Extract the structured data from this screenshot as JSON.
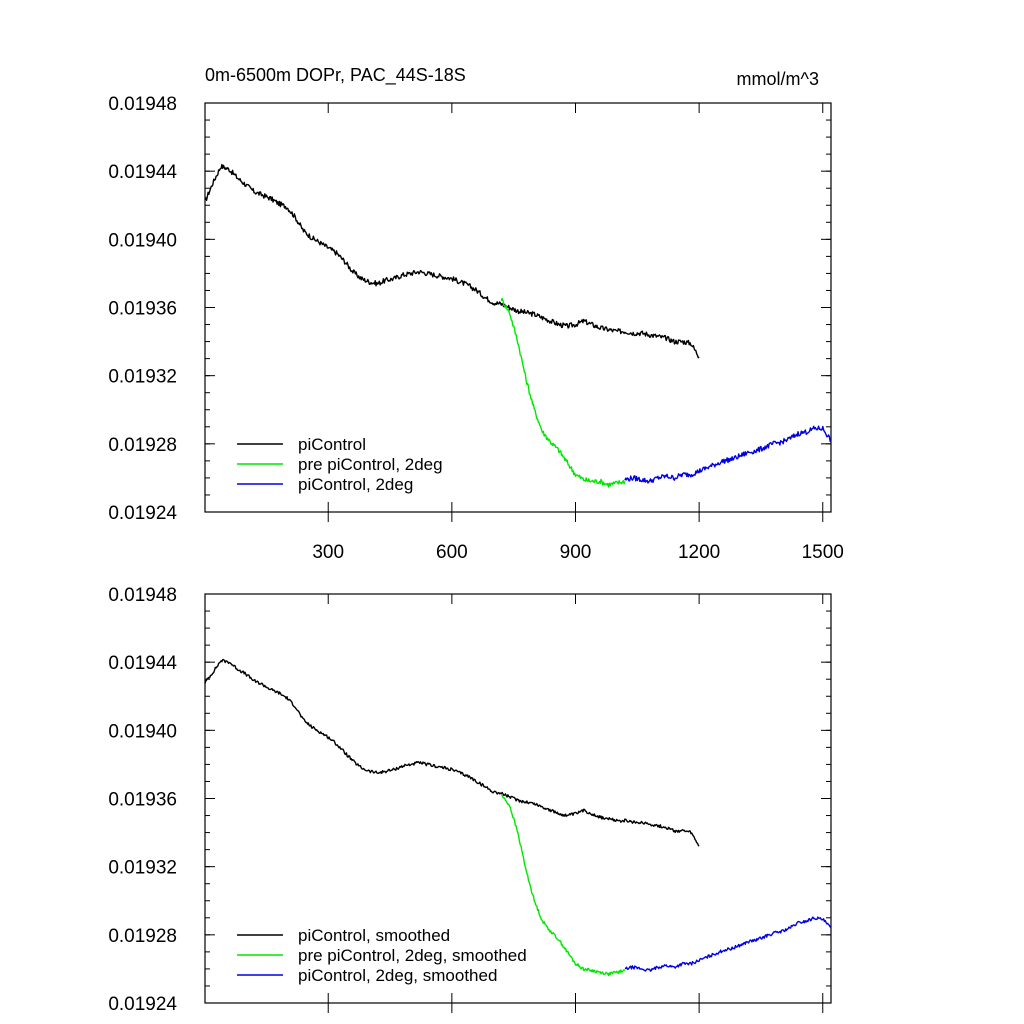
{
  "chart_data": [
    {
      "type": "line",
      "title": "0m-6500m DOPr, PAC_44S-18S",
      "units": "mmol/m^3",
      "xlim": [
        1,
        1520
      ],
      "ylim": [
        0.01924,
        0.01948
      ],
      "x_ticks": [
        "300",
        "600",
        "900",
        "1200",
        "1500"
      ],
      "y_ticks": [
        "0.01948",
        "0.01944",
        "0.01940",
        "0.01936",
        "0.01932",
        "0.01928",
        "0.01924"
      ],
      "legend": [
        "piControl",
        "pre piControl, 2deg",
        "piControl, 2deg"
      ],
      "series": [
        {
          "name": "piControl",
          "color": "#000000",
          "x": [
            1,
            20,
            40,
            60,
            80,
            100,
            120,
            140,
            160,
            180,
            200,
            220,
            240,
            260,
            280,
            300,
            320,
            340,
            360,
            380,
            400,
            420,
            440,
            460,
            480,
            500,
            520,
            540,
            560,
            580,
            600,
            620,
            640,
            660,
            680,
            700,
            720,
            740,
            760,
            780,
            800,
            820,
            840,
            860,
            880,
            900,
            920,
            940,
            960,
            980,
            1000,
            1020,
            1040,
            1060,
            1080,
            1100,
            1120,
            1140,
            1160,
            1180,
            1200
          ],
          "values": [
            0.019422,
            0.019433,
            0.019443,
            0.019441,
            0.019436,
            0.019432,
            0.019428,
            0.019426,
            0.019424,
            0.019421,
            0.019419,
            0.019413,
            0.019405,
            0.019401,
            0.019398,
            0.019395,
            0.019392,
            0.019387,
            0.019381,
            0.019377,
            0.019375,
            0.019374,
            0.019376,
            0.019377,
            0.019379,
            0.01938,
            0.019381,
            0.01938,
            0.019379,
            0.019378,
            0.019377,
            0.019375,
            0.019373,
            0.01937,
            0.019366,
            0.019363,
            0.019362,
            0.01936,
            0.019358,
            0.019357,
            0.019356,
            0.019354,
            0.019352,
            0.01935,
            0.019349,
            0.01935,
            0.019352,
            0.01935,
            0.019348,
            0.019347,
            0.019346,
            0.019346,
            0.019345,
            0.019345,
            0.019344,
            0.019343,
            0.019342,
            0.01934,
            0.01934,
            0.019339,
            0.019331
          ]
        },
        {
          "name": "pre piControl, 2deg",
          "color": "#00e600",
          "x": [
            720,
            740,
            760,
            780,
            800,
            820,
            840,
            860,
            880,
            900,
            920,
            940,
            960,
            980,
            1000,
            1020
          ],
          "values": [
            0.019365,
            0.019357,
            0.01934,
            0.019318,
            0.0193,
            0.019287,
            0.019281,
            0.019276,
            0.019269,
            0.019262,
            0.019259,
            0.019258,
            0.019258,
            0.019256,
            0.019257,
            0.019258
          ]
        },
        {
          "name": "piControl, 2deg",
          "color": "#0000e6",
          "x": [
            1020,
            1040,
            1060,
            1080,
            1100,
            1120,
            1140,
            1160,
            1180,
            1200,
            1220,
            1240,
            1260,
            1280,
            1300,
            1320,
            1340,
            1360,
            1380,
            1400,
            1420,
            1440,
            1460,
            1480,
            1500,
            1520
          ],
          "values": [
            0.019259,
            0.01926,
            0.019259,
            0.019258,
            0.01926,
            0.019261,
            0.01926,
            0.019262,
            0.019262,
            0.019264,
            0.019266,
            0.019268,
            0.01927,
            0.019271,
            0.019273,
            0.019275,
            0.019276,
            0.019278,
            0.01928,
            0.019281,
            0.019283,
            0.019286,
            0.019287,
            0.019289,
            0.019289,
            0.019282
          ]
        }
      ]
    },
    {
      "type": "line",
      "title": "",
      "xlim": [
        1,
        1520
      ],
      "ylim": [
        0.01924,
        0.01948
      ],
      "y_ticks": [
        "0.01948",
        "0.01944",
        "0.01940",
        "0.01936",
        "0.01932",
        "0.01928",
        "0.01924"
      ],
      "legend": [
        "piControl, smoothed",
        "pre piControl, 2deg, smoothed",
        "piControl, 2deg, smoothed"
      ],
      "series": [
        {
          "name": "piControl, smoothed",
          "color": "#000000",
          "x": [
            1,
            20,
            40,
            60,
            80,
            100,
            120,
            140,
            160,
            180,
            200,
            220,
            240,
            260,
            280,
            300,
            320,
            340,
            360,
            380,
            400,
            420,
            440,
            460,
            480,
            500,
            520,
            540,
            560,
            580,
            600,
            620,
            640,
            660,
            680,
            700,
            720,
            740,
            760,
            780,
            800,
            820,
            840,
            860,
            880,
            900,
            920,
            940,
            960,
            980,
            1000,
            1020,
            1040,
            1060,
            1080,
            1100,
            1120,
            1140,
            1160,
            1180,
            1200
          ],
          "values": [
            0.019428,
            0.019434,
            0.019441,
            0.01944,
            0.019436,
            0.019433,
            0.019429,
            0.019427,
            0.019424,
            0.019422,
            0.019419,
            0.019414,
            0.019406,
            0.019402,
            0.019399,
            0.019396,
            0.019392,
            0.019387,
            0.019382,
            0.019378,
            0.019376,
            0.019375,
            0.019376,
            0.019377,
            0.019379,
            0.01938,
            0.019381,
            0.01938,
            0.019379,
            0.019378,
            0.019377,
            0.019375,
            0.019373,
            0.01937,
            0.019367,
            0.019364,
            0.019363,
            0.019361,
            0.019359,
            0.019358,
            0.019357,
            0.019355,
            0.019353,
            0.019351,
            0.01935,
            0.019351,
            0.019353,
            0.019351,
            0.019349,
            0.019348,
            0.019347,
            0.019347,
            0.019346,
            0.019346,
            0.019345,
            0.019344,
            0.019343,
            0.019341,
            0.019341,
            0.01934,
            0.019332
          ]
        },
        {
          "name": "pre piControl, 2deg, smoothed",
          "color": "#00e600",
          "x": [
            720,
            740,
            760,
            780,
            800,
            820,
            840,
            860,
            880,
            900,
            920,
            940,
            960,
            980,
            1000,
            1020
          ],
          "values": [
            0.019362,
            0.019356,
            0.01934,
            0.019318,
            0.0193,
            0.019288,
            0.019282,
            0.019277,
            0.01927,
            0.019263,
            0.01926,
            0.019259,
            0.019258,
            0.019257,
            0.019258,
            0.019259
          ]
        },
        {
          "name": "piControl, 2deg, smoothed",
          "color": "#0000e6",
          "x": [
            1020,
            1040,
            1060,
            1080,
            1100,
            1120,
            1140,
            1160,
            1180,
            1200,
            1220,
            1240,
            1260,
            1280,
            1300,
            1320,
            1340,
            1360,
            1380,
            1400,
            1420,
            1440,
            1460,
            1480,
            1500,
            1520
          ],
          "values": [
            0.01926,
            0.019261,
            0.01926,
            0.019259,
            0.019261,
            0.019262,
            0.019261,
            0.019263,
            0.019263,
            0.019265,
            0.019267,
            0.019269,
            0.019271,
            0.019272,
            0.019274,
            0.019276,
            0.019277,
            0.019279,
            0.019281,
            0.019282,
            0.019284,
            0.019287,
            0.019288,
            0.01929,
            0.019289,
            0.019284
          ]
        }
      ]
    }
  ]
}
